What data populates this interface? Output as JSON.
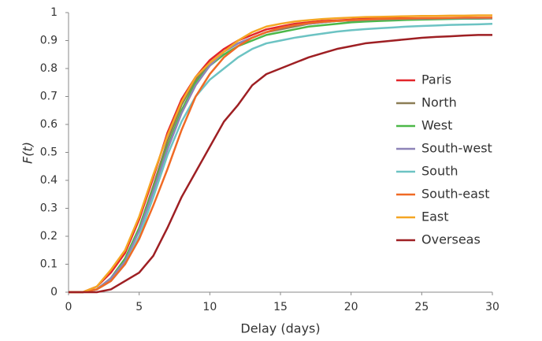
{
  "chart_data": {
    "type": "line",
    "x_label": "Delay (days)",
    "y_label": "F(t)",
    "x": [
      0,
      1,
      2,
      3,
      4,
      5,
      6,
      7,
      8,
      9,
      10,
      11,
      12,
      13,
      14,
      15,
      16,
      17,
      18,
      19,
      20,
      21,
      22,
      23,
      24,
      25,
      26,
      27,
      28,
      29,
      30
    ],
    "xlim": [
      0,
      30
    ],
    "xticks": [
      0,
      5,
      10,
      15,
      20,
      25,
      30
    ],
    "ylim": [
      0,
      1
    ],
    "yticks": [
      0,
      0.1,
      0.2,
      0.3,
      0.4,
      0.5,
      0.6,
      0.7,
      0.8,
      0.9,
      1
    ],
    "grid": false,
    "legend": "center right",
    "series": [
      {
        "name": "Paris",
        "color": "#e3262b",
        "values": [
          0,
          0,
          0.02,
          0.07,
          0.14,
          0.26,
          0.41,
          0.57,
          0.69,
          0.77,
          0.83,
          0.87,
          0.9,
          0.92,
          0.94,
          0.95,
          0.96,
          0.965,
          0.97,
          0.972,
          0.975,
          0.978,
          0.98,
          0.98,
          0.98,
          0.98,
          0.98,
          0.98,
          0.98,
          0.98,
          0.98
        ]
      },
      {
        "name": "North",
        "color": "#8b7d55",
        "values": [
          0,
          0,
          0.01,
          0.05,
          0.12,
          0.23,
          0.38,
          0.54,
          0.67,
          0.76,
          0.82,
          0.86,
          0.89,
          0.91,
          0.93,
          0.94,
          0.95,
          0.96,
          0.965,
          0.97,
          0.972,
          0.975,
          0.976,
          0.977,
          0.978,
          0.978,
          0.979,
          0.98,
          0.98,
          0.98,
          0.98
        ]
      },
      {
        "name": "West",
        "color": "#4cb848",
        "values": [
          0,
          0,
          0.01,
          0.05,
          0.12,
          0.23,
          0.37,
          0.52,
          0.65,
          0.75,
          0.81,
          0.85,
          0.88,
          0.9,
          0.92,
          0.93,
          0.94,
          0.95,
          0.955,
          0.96,
          0.965,
          0.968,
          0.97,
          0.972,
          0.974,
          0.975,
          0.976,
          0.977,
          0.978,
          0.978,
          0.979
        ]
      },
      {
        "name": "South-west",
        "color": "#8d83b8",
        "values": [
          0,
          0,
          0.01,
          0.05,
          0.11,
          0.22,
          0.36,
          0.51,
          0.64,
          0.74,
          0.81,
          0.86,
          0.89,
          0.91,
          0.93,
          0.945,
          0.955,
          0.96,
          0.965,
          0.97,
          0.972,
          0.974,
          0.976,
          0.977,
          0.978,
          0.978,
          0.979,
          0.98,
          0.98,
          0.98,
          0.98
        ]
      },
      {
        "name": "South",
        "color": "#6cc3c3",
        "values": [
          0,
          0,
          0.01,
          0.04,
          0.1,
          0.2,
          0.34,
          0.49,
          0.61,
          0.7,
          0.76,
          0.8,
          0.84,
          0.87,
          0.89,
          0.9,
          0.91,
          0.918,
          0.925,
          0.932,
          0.937,
          0.941,
          0.944,
          0.947,
          0.95,
          0.952,
          0.954,
          0.956,
          0.957,
          0.958,
          0.96
        ]
      },
      {
        "name": "South-east",
        "color": "#f06a25",
        "values": [
          0,
          0,
          0.01,
          0.04,
          0.1,
          0.19,
          0.31,
          0.44,
          0.58,
          0.7,
          0.78,
          0.84,
          0.88,
          0.91,
          0.93,
          0.945,
          0.955,
          0.962,
          0.967,
          0.97,
          0.973,
          0.975,
          0.977,
          0.978,
          0.979,
          0.98,
          0.98,
          0.981,
          0.982,
          0.982,
          0.982
        ]
      },
      {
        "name": "East",
        "color": "#f5a623",
        "values": [
          0,
          0,
          0.02,
          0.08,
          0.15,
          0.27,
          0.42,
          0.56,
          0.68,
          0.77,
          0.82,
          0.86,
          0.9,
          0.93,
          0.95,
          0.96,
          0.968,
          0.973,
          0.977,
          0.98,
          0.982,
          0.984,
          0.985,
          0.986,
          0.987,
          0.988,
          0.988,
          0.989,
          0.989,
          0.99,
          0.99
        ]
      },
      {
        "name": "Overseas",
        "color": "#9e1f23",
        "values": [
          0,
          0,
          0,
          0.01,
          0.04,
          0.07,
          0.13,
          0.23,
          0.34,
          0.43,
          0.52,
          0.61,
          0.67,
          0.74,
          0.78,
          0.8,
          0.82,
          0.84,
          0.855,
          0.87,
          0.88,
          0.89,
          0.895,
          0.9,
          0.905,
          0.91,
          0.913,
          0.915,
          0.918,
          0.92,
          0.92
        ]
      }
    ]
  }
}
